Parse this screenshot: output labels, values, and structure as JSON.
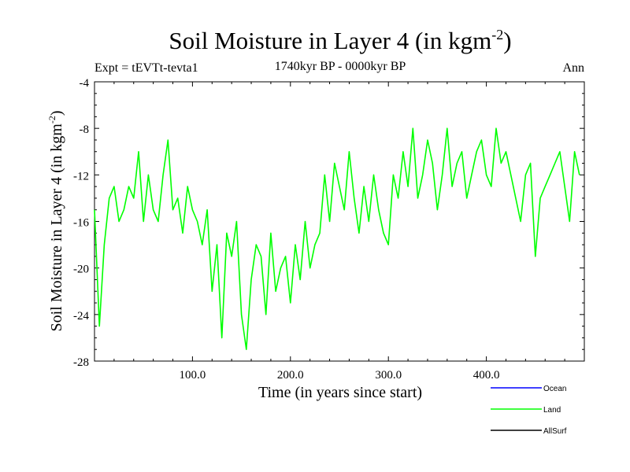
{
  "chart_data": {
    "type": "line",
    "title": "Soil Moisture in Layer 4 (in kgm",
    "title_superscript": "-2",
    "title_close": ")",
    "subtitle": "1740kyr BP - 0000kyr BP",
    "left_label": "Expt = tEVTt-tevta1",
    "right_label": "Ann",
    "xlabel": "Time (in years since start)",
    "ylabel": "Soil Moisture in Layer 4 (in kgm",
    "ylabel_superscript": "-2",
    "ylabel_close": ")",
    "xlim": [
      0,
      500
    ],
    "ylim": [
      -28,
      -4
    ],
    "x_ticks": [
      100,
      200,
      300,
      400
    ],
    "x_tick_labels": [
      "100.0",
      "200.0",
      "300.0",
      "400.0"
    ],
    "y_ticks": [
      -28,
      -24,
      -20,
      -16,
      -12,
      -8,
      -4
    ],
    "y_tick_labels": [
      "-28",
      "-24",
      "-20",
      "-16",
      "-12",
      "-8",
      "-4"
    ],
    "legend": {
      "position": "bottom-right",
      "entries": [
        {
          "name": "Ocean",
          "color": "#0000ff"
        },
        {
          "name": "Land",
          "color": "#00ff00"
        },
        {
          "name": "AllSurf",
          "color": "#000000"
        }
      ]
    },
    "series": [
      {
        "name": "Land",
        "color": "#00ff00",
        "x": [
          0,
          5,
          10,
          15,
          20,
          25,
          30,
          35,
          40,
          45,
          50,
          55,
          60,
          65,
          70,
          75,
          80,
          85,
          90,
          95,
          100,
          105,
          110,
          115,
          120,
          125,
          130,
          135,
          140,
          145,
          150,
          155,
          160,
          165,
          170,
          175,
          180,
          185,
          190,
          195,
          200,
          205,
          210,
          215,
          220,
          225,
          230,
          235,
          240,
          245,
          250,
          255,
          260,
          265,
          270,
          275,
          280,
          285,
          290,
          295,
          300,
          305,
          310,
          315,
          320,
          325,
          330,
          335,
          340,
          345,
          350,
          355,
          360,
          365,
          370,
          375,
          380,
          385,
          390,
          395,
          400,
          405,
          410,
          415,
          420,
          425,
          430,
          435,
          440,
          445,
          450,
          455,
          460,
          465,
          470,
          475,
          480,
          485,
          490,
          495
        ],
        "values": [
          -15,
          -25,
          -18,
          -14,
          -13,
          -16,
          -15,
          -13,
          -14,
          -10,
          -16,
          -12,
          -15,
          -16,
          -12,
          -9,
          -15,
          -14,
          -17,
          -13,
          -15,
          -16,
          -18,
          -15,
          -22,
          -18,
          -26,
          -17,
          -19,
          -16,
          -24,
          -27,
          -21,
          -18,
          -19,
          -24,
          -17,
          -22,
          -20,
          -19,
          -23,
          -18,
          -21,
          -16,
          -20,
          -18,
          -17,
          -12,
          -16,
          -11,
          -13,
          -15,
          -10,
          -14,
          -17,
          -13,
          -16,
          -12,
          -15,
          -17,
          -18,
          -12,
          -14,
          -10,
          -13,
          -8,
          -14,
          -12,
          -9,
          -11,
          -15,
          -12,
          -8,
          -13,
          -11,
          -10,
          -14,
          -12,
          -10,
          -9,
          -12,
          -13,
          -8,
          -11,
          -10,
          -12,
          -14,
          -16,
          -12,
          -11,
          -19,
          -14,
          -13,
          -12,
          -11,
          -10,
          -13,
          -16,
          -10,
          -12
        ]
      }
    ]
  }
}
